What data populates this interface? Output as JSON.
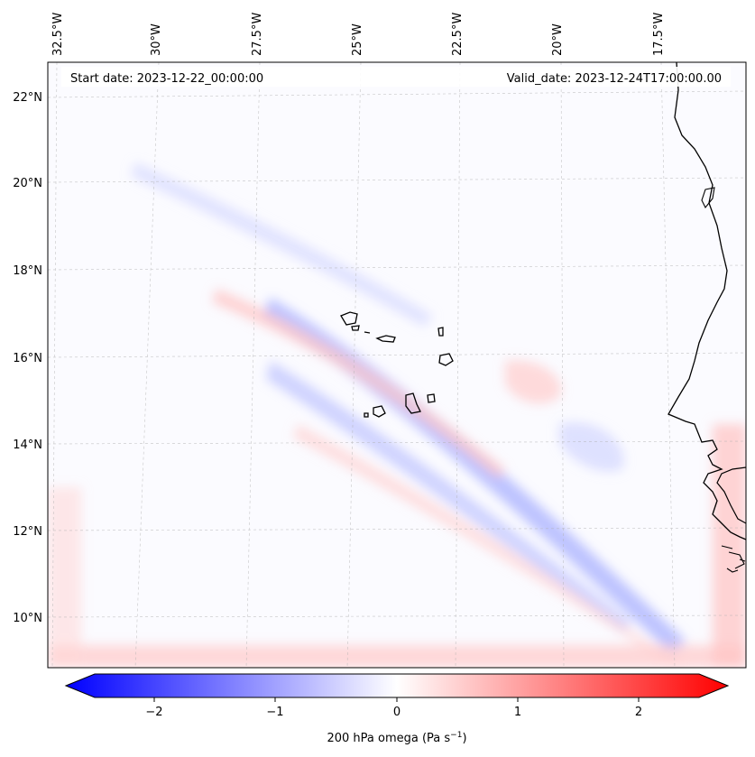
{
  "map": {
    "start_date_label": "Start date: 2023-12-22_00:00:00",
    "valid_date_label": "Valid_date: 2023-12-24T17:00:00.00",
    "longitude_labels": [
      "32.5°W",
      "30°W",
      "27.5°W",
      "25°W",
      "22.5°W",
      "20°W",
      "17.5°W"
    ],
    "latitude_labels": [
      "22°N",
      "20°N",
      "18°N",
      "16°N",
      "14°N",
      "12°N",
      "10°N"
    ],
    "colorbar": {
      "tick_labels": [
        "−2",
        "−1",
        "0",
        "1",
        "2"
      ],
      "ticks": [
        -2,
        -1,
        0,
        1,
        2
      ],
      "min": -2.5,
      "max": 2.5,
      "title": "200 hPa omega (Pa s",
      "title_superscript": "−1",
      "title_suffix": ")"
    },
    "colors": {
      "negative": "#0000ff",
      "zero": "#ffffff",
      "positive": "#ff0000",
      "coastline": "#000000",
      "gridline": "#b0b0b0"
    }
  }
}
